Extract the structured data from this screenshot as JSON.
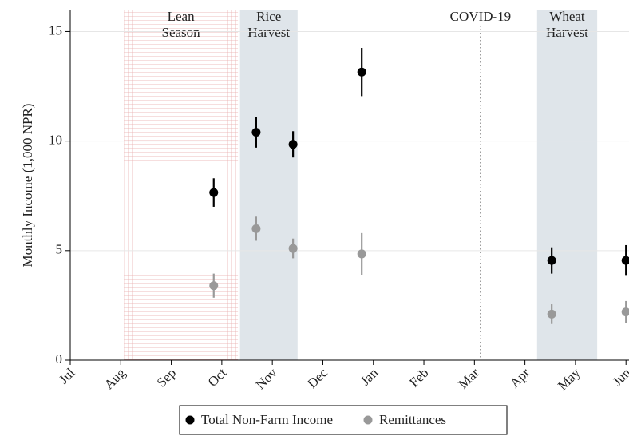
{
  "chart_data": {
    "type": "errorbar",
    "y_label": "Monthly Income (1,000 NPR)",
    "x": [
      2.84,
      3.68,
      4.41,
      5.77,
      9.53,
      11.0
    ],
    "xlim": [
      0,
      11.06
    ],
    "xticks": [
      {
        "value": 0,
        "label": "Jul"
      },
      {
        "value": 1,
        "label": "Aug"
      },
      {
        "value": 2,
        "label": "Sep"
      },
      {
        "value": 3,
        "label": "Oct"
      },
      {
        "value": 4,
        "label": "Nov"
      },
      {
        "value": 5,
        "label": "Dec"
      },
      {
        "value": 6,
        "label": "Jan"
      },
      {
        "value": 7,
        "label": "Feb"
      },
      {
        "value": 8,
        "label": "Mar"
      },
      {
        "value": 9,
        "label": "Apr"
      },
      {
        "value": 10,
        "label": "May"
      },
      {
        "value": 11,
        "label": "Jun"
      }
    ],
    "ylim": [
      0,
      16
    ],
    "yticks": [
      0,
      5,
      10,
      15
    ],
    "grid": true,
    "series": [
      {
        "name": "Total Non-Farm Income",
        "color": "#000000",
        "values": [
          7.65,
          10.4,
          9.85,
          13.15,
          4.55,
          4.55
        ],
        "errors": [
          0.65,
          0.7,
          0.6,
          1.1,
          0.6,
          0.7
        ]
      },
      {
        "name": "Remittances",
        "color": "#999999",
        "values": [
          3.4,
          6.0,
          5.1,
          4.85,
          2.1,
          2.2
        ],
        "errors": [
          0.55,
          0.55,
          0.45,
          0.95,
          0.45,
          0.5
        ]
      }
    ],
    "regions": [
      {
        "label": [
          "Lean",
          "Season"
        ],
        "x": [
          1.06,
          3.32
        ],
        "color": "#e8a8a8",
        "hatch": true
      },
      {
        "label": [
          "Rice",
          "Harvest"
        ],
        "x": [
          3.36,
          4.5
        ],
        "color": "#dfe5ea",
        "hatch": false
      },
      {
        "label": [
          "Wheat",
          "Harvest"
        ],
        "x": [
          9.24,
          10.43
        ],
        "color": "#dfe5ea",
        "hatch": false
      }
    ],
    "annotations": [
      {
        "label": "COVID-19",
        "x": 8.12
      }
    ],
    "legend": "bottom"
  }
}
